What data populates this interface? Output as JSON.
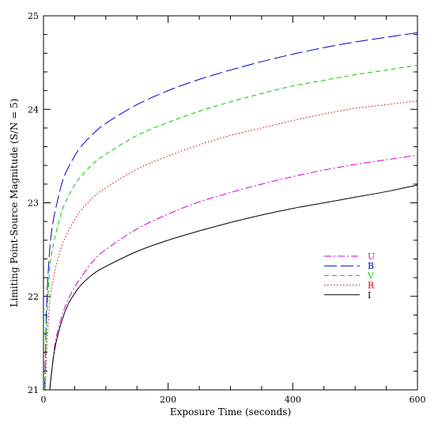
{
  "chart_data": {
    "type": "line",
    "title": "",
    "xlabel": "Exposure Time (seconds)",
    "ylabel": "Limiting Point-Source Magnitude (S/N = 5)",
    "xlim": [
      0,
      600
    ],
    "ylim": [
      21,
      25
    ],
    "x_ticks": [
      0,
      200,
      400,
      600
    ],
    "y_ticks": [
      21,
      22,
      23,
      24,
      25
    ],
    "grid": false,
    "legend_position": "right-middle",
    "series": [
      {
        "name": "U",
        "color": "#d400d4",
        "dash": "dash-dot",
        "x": [
          10,
          15,
          20,
          30,
          40,
          50,
          60,
          80,
          100,
          150,
          200,
          250,
          300,
          350,
          400,
          450,
          500,
          550,
          600
        ],
        "y": [
          21.0,
          21.3,
          21.55,
          21.8,
          21.97,
          22.1,
          22.2,
          22.38,
          22.5,
          22.72,
          22.88,
          23.01,
          23.11,
          23.2,
          23.28,
          23.35,
          23.41,
          23.46,
          23.51
        ]
      },
      {
        "name": "B",
        "color": "#0000cc",
        "dash": "long-dash",
        "x": [
          2,
          5,
          10,
          15,
          20,
          30,
          40,
          50,
          60,
          80,
          100,
          150,
          200,
          250,
          300,
          350,
          400,
          450,
          500,
          550,
          600
        ],
        "y": [
          21.0,
          21.9,
          22.5,
          22.78,
          22.95,
          23.22,
          23.38,
          23.5,
          23.6,
          23.74,
          23.85,
          24.05,
          24.2,
          24.32,
          24.42,
          24.51,
          24.59,
          24.66,
          24.72,
          24.77,
          24.82
        ]
      },
      {
        "name": "V",
        "color": "#00cc00",
        "dash": "dash",
        "x": [
          2,
          5,
          10,
          15,
          20,
          30,
          40,
          50,
          60,
          80,
          100,
          150,
          200,
          250,
          300,
          350,
          400,
          450,
          500,
          550,
          600
        ],
        "y": [
          21.0,
          21.7,
          22.3,
          22.52,
          22.68,
          22.92,
          23.07,
          23.19,
          23.28,
          23.42,
          23.52,
          23.72,
          23.86,
          23.98,
          24.08,
          24.17,
          24.25,
          24.31,
          24.37,
          24.42,
          24.47
        ]
      },
      {
        "name": "R",
        "color": "#cc0000",
        "dash": "dot",
        "x": [
          3,
          5,
          10,
          15,
          20,
          30,
          40,
          50,
          60,
          80,
          100,
          150,
          200,
          250,
          300,
          350,
          400,
          450,
          500,
          550,
          600
        ],
        "y": [
          21.0,
          21.4,
          21.95,
          22.15,
          22.32,
          22.55,
          22.7,
          22.82,
          22.92,
          23.06,
          23.16,
          23.36,
          23.5,
          23.62,
          23.72,
          23.8,
          23.88,
          23.95,
          24.01,
          24.05,
          24.09
        ]
      },
      {
        "name": "I",
        "color": "#000000",
        "dash": "solid",
        "x": [
          10,
          15,
          20,
          30,
          40,
          50,
          60,
          80,
          100,
          150,
          200,
          250,
          300,
          350,
          400,
          450,
          500,
          550,
          600
        ],
        "y": [
          21.0,
          21.3,
          21.5,
          21.75,
          21.92,
          22.03,
          22.12,
          22.24,
          22.32,
          22.48,
          22.6,
          22.7,
          22.79,
          22.87,
          22.94,
          23.0,
          23.06,
          23.12,
          23.19
        ]
      }
    ]
  }
}
